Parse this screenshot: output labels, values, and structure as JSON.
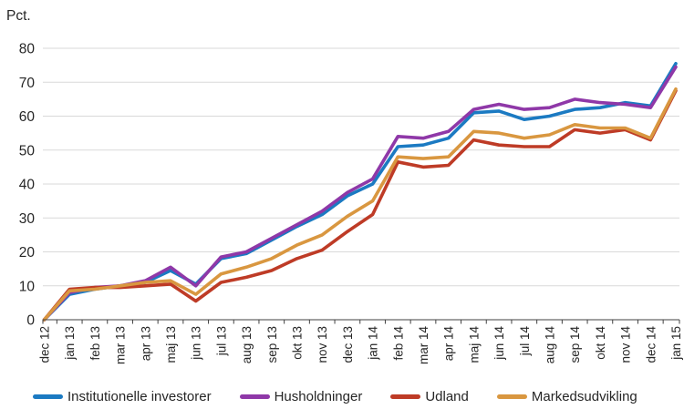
{
  "chart_data": {
    "type": "line",
    "title": "",
    "ylabel": "Pct.",
    "xlabel": "",
    "ylim": [
      0,
      80
    ],
    "yticks": [
      0,
      10,
      20,
      30,
      40,
      50,
      60,
      70,
      80
    ],
    "grid": "horizontal",
    "grid_color": "#d9d9d9",
    "axis_color": "#404040",
    "legend_position": "bottom",
    "categories": [
      "dec 12",
      "jan 13",
      "feb 13",
      "mar 13",
      "apr 13",
      "maj 13",
      "jun 13",
      "jul 13",
      "aug 13",
      "sep 13",
      "okt 13",
      "nov 13",
      "dec 13",
      "jan 14",
      "feb 14",
      "mar 14",
      "apr 14",
      "maj 14",
      "jun 14",
      "jul 14",
      "aug 14",
      "sep 14",
      "okt 14",
      "nov 14",
      "dec 14",
      "jan 15"
    ],
    "series": [
      {
        "name": "Institutionelle investorer",
        "color": "#1b7ac2",
        "values": [
          0,
          7.5,
          9,
          10,
          11,
          14.5,
          10.5,
          18,
          19.5,
          23.5,
          27.5,
          31,
          36.5,
          40,
          51,
          51.5,
          53.5,
          61,
          61.5,
          59,
          60,
          62,
          62.5,
          64,
          63,
          75.5
        ]
      },
      {
        "name": "Husholdninger",
        "color": "#8f38a8",
        "values": [
          0,
          8,
          9.5,
          10,
          11.5,
          15.5,
          10,
          18.5,
          20,
          24,
          28,
          32,
          37.5,
          41.5,
          54,
          53.5,
          55.5,
          62,
          63.5,
          62,
          62.5,
          65,
          64,
          63.5,
          62.5,
          74.5
        ]
      },
      {
        "name": "Udland",
        "color": "#be3b26",
        "values": [
          0,
          9,
          9.5,
          9.5,
          10,
          10.5,
          5.5,
          11,
          12.5,
          14.5,
          18,
          20.5,
          26,
          31,
          46.5,
          45,
          45.5,
          53,
          51.5,
          51,
          51,
          56,
          55,
          56,
          53,
          67.5
        ]
      },
      {
        "name": "Markedsudvikling",
        "color": "#d99740",
        "values": [
          0,
          8.5,
          9,
          10,
          11,
          11.5,
          7.5,
          13.5,
          15.5,
          18,
          22,
          25,
          30.5,
          35,
          48,
          47.5,
          48,
          55.5,
          55,
          53.5,
          54.5,
          57.5,
          56.5,
          56.5,
          53.5,
          68
        ]
      }
    ]
  }
}
